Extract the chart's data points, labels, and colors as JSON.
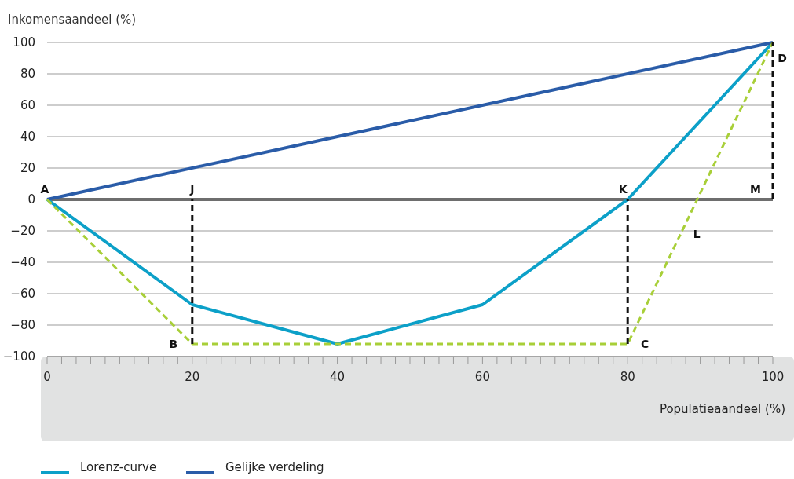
{
  "chart_data": {
    "type": "line",
    "xlabel": "Populatieaandeel (%)",
    "ylabel": "Inkomensaandeel (%)",
    "x": [
      0,
      20,
      40,
      60,
      80,
      100
    ],
    "series": [
      {
        "name": "Lorenz-curve",
        "color": "#0ca0c8",
        "values": [
          0,
          -67,
          -92,
          -67,
          0,
          100
        ]
      },
      {
        "name": "Gelijke verdeling",
        "color": "#2a5ca8",
        "x": [
          0,
          100
        ],
        "values": [
          0,
          100
        ]
      },
      {
        "color": "#a8cf38",
        "x": [
          0,
          20,
          80,
          100
        ],
        "values": [
          0,
          -92,
          -92,
          100
        ],
        "line_style": "dashed"
      },
      {
        "color": "#111111",
        "x": [
          20,
          20
        ],
        "values": [
          -92,
          0
        ],
        "line_style": "dashed"
      },
      {
        "color": "#111111",
        "x": [
          80,
          80
        ],
        "values": [
          -92,
          0
        ],
        "line_style": "dashed"
      },
      {
        "color": "#111111",
        "x": [
          100,
          100
        ],
        "values": [
          0,
          100
        ],
        "line_style": "dashed"
      }
    ],
    "xlim": [
      0,
      100
    ],
    "ylim": [
      -100,
      100
    ],
    "xticks": [
      0,
      {
        "value": 2,
        "label": null
      },
      {
        "value": 4,
        "label": null
      },
      {
        "value": 6,
        "label": null
      },
      {
        "value": 8,
        "label": null
      },
      {
        "value": 10,
        "label": null
      },
      {
        "value": 12,
        "label": null
      },
      {
        "value": 14,
        "label": null
      },
      {
        "value": 16,
        "label": null
      },
      {
        "value": 18,
        "label": null
      },
      20,
      {
        "value": 22,
        "label": null
      },
      {
        "value": 24,
        "label": null
      },
      {
        "value": 26,
        "label": null
      },
      {
        "value": 28,
        "label": null
      },
      {
        "value": 30,
        "label": null
      },
      {
        "value": 32,
        "label": null
      },
      {
        "value": 34,
        "label": null
      },
      {
        "value": 36,
        "label": null
      },
      {
        "value": 38,
        "label": null
      },
      40,
      {
        "value": 42,
        "label": null
      },
      {
        "value": 44,
        "label": null
      },
      {
        "value": 46,
        "label": null
      },
      {
        "value": 48,
        "label": null
      },
      {
        "value": 50,
        "label": null
      },
      {
        "value": 52,
        "label": null
      },
      {
        "value": 54,
        "label": null
      },
      {
        "value": 56,
        "label": null
      },
      {
        "value": 58,
        "label": null
      },
      60,
      {
        "value": 62,
        "label": null
      },
      {
        "value": 64,
        "label": null
      },
      {
        "value": 66,
        "label": null
      },
      {
        "value": 68,
        "label": null
      },
      {
        "value": 70,
        "label": null
      },
      {
        "value": 72,
        "label": null
      },
      {
        "value": 74,
        "label": null
      },
      {
        "value": 76,
        "label": null
      },
      {
        "value": 78,
        "label": null
      },
      80,
      {
        "value": 82,
        "label": null
      },
      {
        "value": 84,
        "label": null
      },
      {
        "value": 86,
        "label": null
      },
      {
        "value": 88,
        "label": null
      },
      {
        "value": 90,
        "label": null
      },
      {
        "value": 92,
        "label": null
      },
      {
        "value": 94,
        "label": null
      },
      {
        "value": 96,
        "label": null
      },
      {
        "value": 98,
        "label": null
      },
      100
    ],
    "yticks": [
      -100,
      -80,
      -60,
      -40,
      -20,
      0,
      20,
      40,
      60,
      80,
      100
    ],
    "ref_lines": [
      {
        "axis": "y",
        "value": 0,
        "color": "#6e6e6e"
      }
    ],
    "annotations": [
      {
        "text": "A",
        "x": 0,
        "y": 0
      },
      {
        "text": "J",
        "x": 20,
        "y": 0
      },
      {
        "text": "K",
        "x": 80,
        "y": 0
      },
      {
        "text": "M",
        "x": 100,
        "y": 0
      },
      {
        "text": "D",
        "x": 100,
        "y": 100
      },
      {
        "text": "L",
        "x": 88,
        "y": -15
      },
      {
        "text": "B",
        "x": 20,
        "y": -92
      },
      {
        "text": "C",
        "x": 80,
        "y": -92
      }
    ],
    "grid": "y",
    "legend": "bottom",
    "marker": "none",
    "line_style": "solid"
  }
}
